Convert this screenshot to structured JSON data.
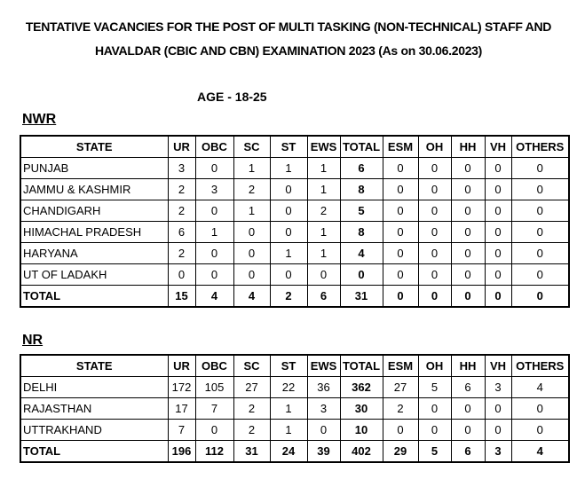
{
  "header": {
    "title_lines": [
      "TENTATIVE VACANCIES FOR THE POST OF MULTI TASKING (NON-TECHNICAL) STAFF AND",
      "HAVALDAR (CBIC AND CBN) EXAMINATION 2023 (As on 30.06.2023)"
    ],
    "age": "AGE - 18-25"
  },
  "sections": [
    {
      "name": "NWR",
      "columns": [
        "STATE",
        "UR",
        "OBC",
        "SC",
        "ST",
        "EWS",
        "TOTAL",
        "ESM",
        "OH",
        "HH",
        "VH",
        "OTHERS"
      ],
      "rows": [
        [
          "PUNJAB",
          3,
          0,
          1,
          1,
          1,
          6,
          0,
          0,
          0,
          0,
          0
        ],
        [
          "JAMMU & KASHMIR",
          2,
          3,
          2,
          0,
          1,
          8,
          0,
          0,
          0,
          0,
          0
        ],
        [
          "CHANDIGARH",
          2,
          0,
          1,
          0,
          2,
          5,
          0,
          0,
          0,
          0,
          0
        ],
        [
          "HIMACHAL PRADESH",
          6,
          1,
          0,
          0,
          1,
          8,
          0,
          0,
          0,
          0,
          0
        ],
        [
          "HARYANA",
          2,
          0,
          0,
          1,
          1,
          4,
          0,
          0,
          0,
          0,
          0
        ],
        [
          "UT OF LADAKH",
          0,
          0,
          0,
          0,
          0,
          0,
          0,
          0,
          0,
          0,
          0
        ]
      ],
      "total": [
        "TOTAL",
        15,
        4,
        4,
        2,
        6,
        31,
        0,
        0,
        0,
        0,
        0
      ]
    },
    {
      "name": "NR",
      "columns": [
        "STATE",
        "UR",
        "OBC",
        "SC",
        "ST",
        "EWS",
        "TOTAL",
        "ESM",
        "OH",
        "HH",
        "VH",
        "OTHERS"
      ],
      "rows": [
        [
          "DELHI",
          172,
          105,
          27,
          22,
          36,
          362,
          27,
          5,
          6,
          3,
          4
        ],
        [
          "RAJASTHAN",
          17,
          7,
          2,
          1,
          3,
          30,
          2,
          0,
          0,
          0,
          0
        ],
        [
          "UTTRAKHAND",
          7,
          0,
          2,
          1,
          0,
          10,
          0,
          0,
          0,
          0,
          0
        ]
      ],
      "total": [
        "TOTAL",
        196,
        112,
        31,
        24,
        39,
        402,
        29,
        5,
        6,
        3,
        4
      ]
    }
  ]
}
